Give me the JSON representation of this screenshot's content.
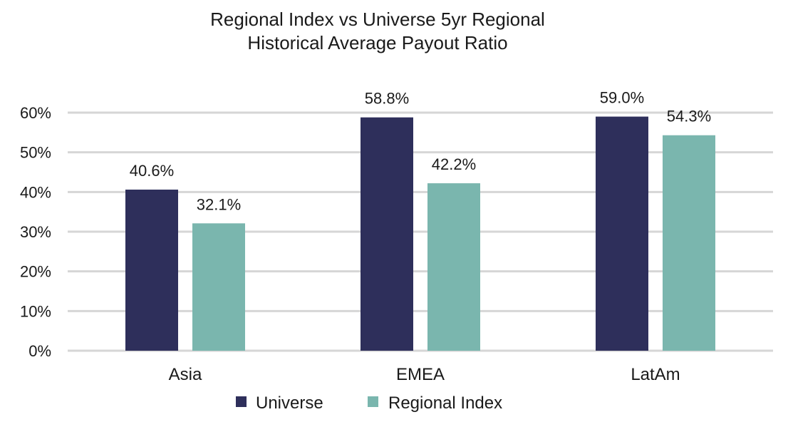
{
  "chart_data": {
    "type": "bar",
    "title_lines": [
      "Regional Index vs Universe 5yr Regional",
      "Historical Average Payout Ratio"
    ],
    "categories": [
      "Asia",
      "EMEA",
      "LatAm"
    ],
    "series": [
      {
        "name": "Universe",
        "color": "#2e2f5b",
        "values": [
          40.6,
          58.8,
          59.0
        ],
        "labels": [
          "40.6%",
          "58.8%",
          "59.0%"
        ]
      },
      {
        "name": "Regional Index",
        "color": "#7ab6ae",
        "values": [
          32.1,
          42.2,
          54.3
        ],
        "labels": [
          "32.1%",
          "42.2%",
          "54.3%"
        ]
      }
    ],
    "ylim": [
      0,
      60
    ],
    "yticks": [
      0,
      10,
      20,
      30,
      40,
      50,
      60
    ],
    "ytick_labels": [
      "0%",
      "10%",
      "20%",
      "30%",
      "40%",
      "50%",
      "60%"
    ],
    "grid": true,
    "legend_position": "bottom"
  }
}
